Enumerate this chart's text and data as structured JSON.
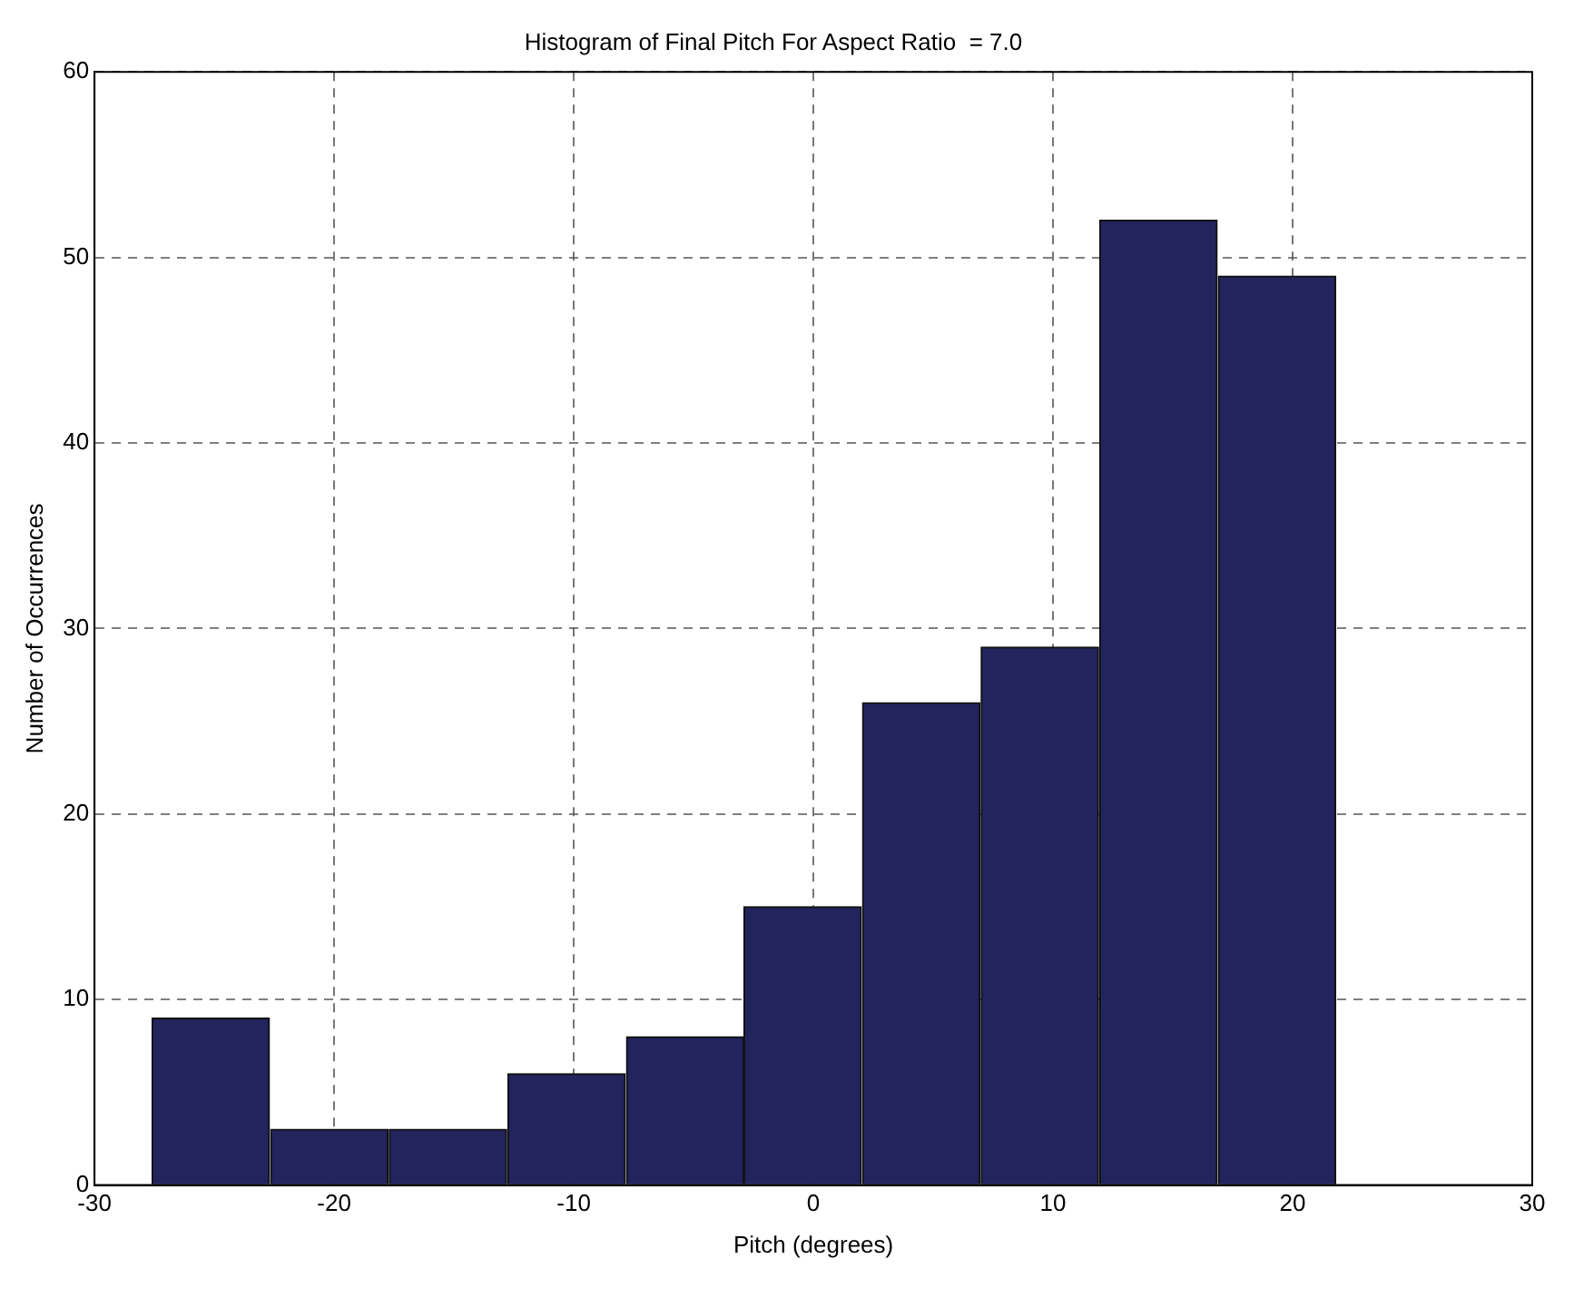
{
  "chart_data": {
    "type": "histogram",
    "title": "Histogram of Final Pitch For Aspect Ratio  = 7.0",
    "xlabel": "Pitch (degrees)",
    "ylabel": "Number of Occurrences",
    "bins": [
      -27.6,
      -22.7,
      -17.7,
      -12.8,
      -7.8,
      -2.9,
      2.0,
      7.0,
      11.9,
      16.9,
      21.8
    ],
    "values": [
      9,
      3,
      3,
      6,
      8,
      15,
      26,
      29,
      52,
      49
    ],
    "color": "#23235e",
    "xlim": [
      -30,
      30
    ],
    "xticks": [
      -30,
      -20,
      -10,
      0,
      10,
      20,
      30
    ],
    "ylim": [
      0,
      60
    ],
    "yticks": [
      0,
      10,
      20,
      30,
      40,
      50,
      60
    ],
    "grid": true,
    "legend": false
  }
}
